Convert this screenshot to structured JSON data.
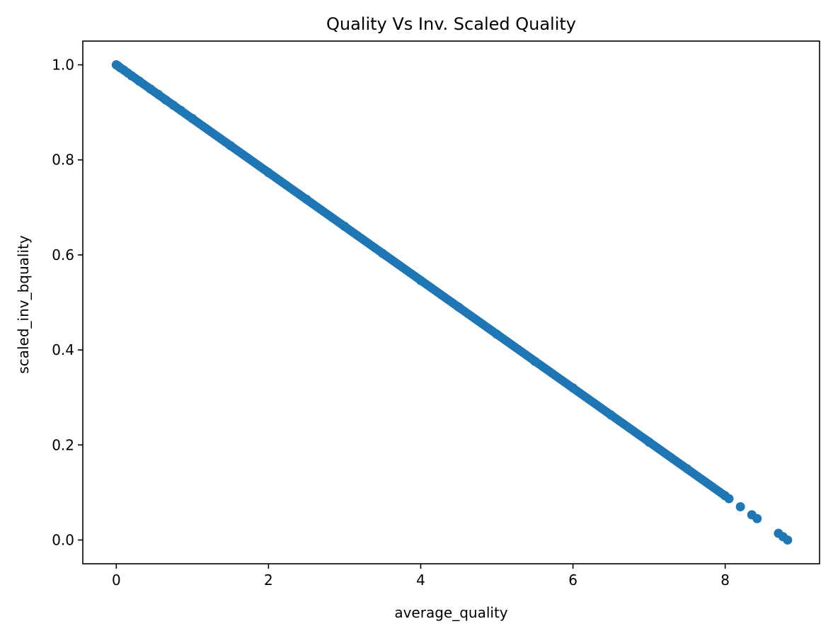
{
  "chart_data": {
    "type": "scatter",
    "title": "Quality Vs Inv. Scaled Quality",
    "xlabel": "average_quality",
    "ylabel": "scaled_inv_bquality",
    "xlim": [
      -0.44,
      9.24
    ],
    "ylim": [
      -0.05,
      1.05
    ],
    "xticks": [
      0,
      2,
      4,
      6,
      8
    ],
    "xtick_labels": [
      "0",
      "2",
      "4",
      "6",
      "8"
    ],
    "yticks": [
      0.0,
      0.2,
      0.4,
      0.6,
      0.8,
      1.0
    ],
    "ytick_labels": [
      "0.0",
      "0.2",
      "0.4",
      "0.6",
      "0.8",
      "1.0"
    ],
    "grid": false,
    "legend": "none",
    "relationship": "y = 1 - x / 8.82",
    "dense_x_range": [
      0.0,
      8.0
    ],
    "series": [
      {
        "color": "#1f77b4",
        "x": [
          0.0,
          0.02,
          0.05,
          0.1,
          0.15,
          0.2,
          0.3,
          0.45,
          0.55,
          0.65,
          0.75,
          0.85,
          1.0,
          1.5,
          2.0,
          2.5,
          3.0,
          3.5,
          4.0,
          4.5,
          5.0,
          5.5,
          6.0,
          6.5,
          7.0,
          7.5,
          8.0,
          8.05,
          8.2,
          8.35,
          8.42,
          8.7,
          8.76,
          8.82
        ],
        "y": [
          1.0,
          0.998,
          0.994,
          0.989,
          0.983,
          0.977,
          0.966,
          0.949,
          0.938,
          0.926,
          0.915,
          0.904,
          0.887,
          0.83,
          0.773,
          0.717,
          0.66,
          0.603,
          0.546,
          0.49,
          0.433,
          0.376,
          0.32,
          0.263,
          0.206,
          0.15,
          0.093,
          0.087,
          0.07,
          0.053,
          0.045,
          0.014,
          0.007,
          0.0
        ]
      }
    ]
  }
}
